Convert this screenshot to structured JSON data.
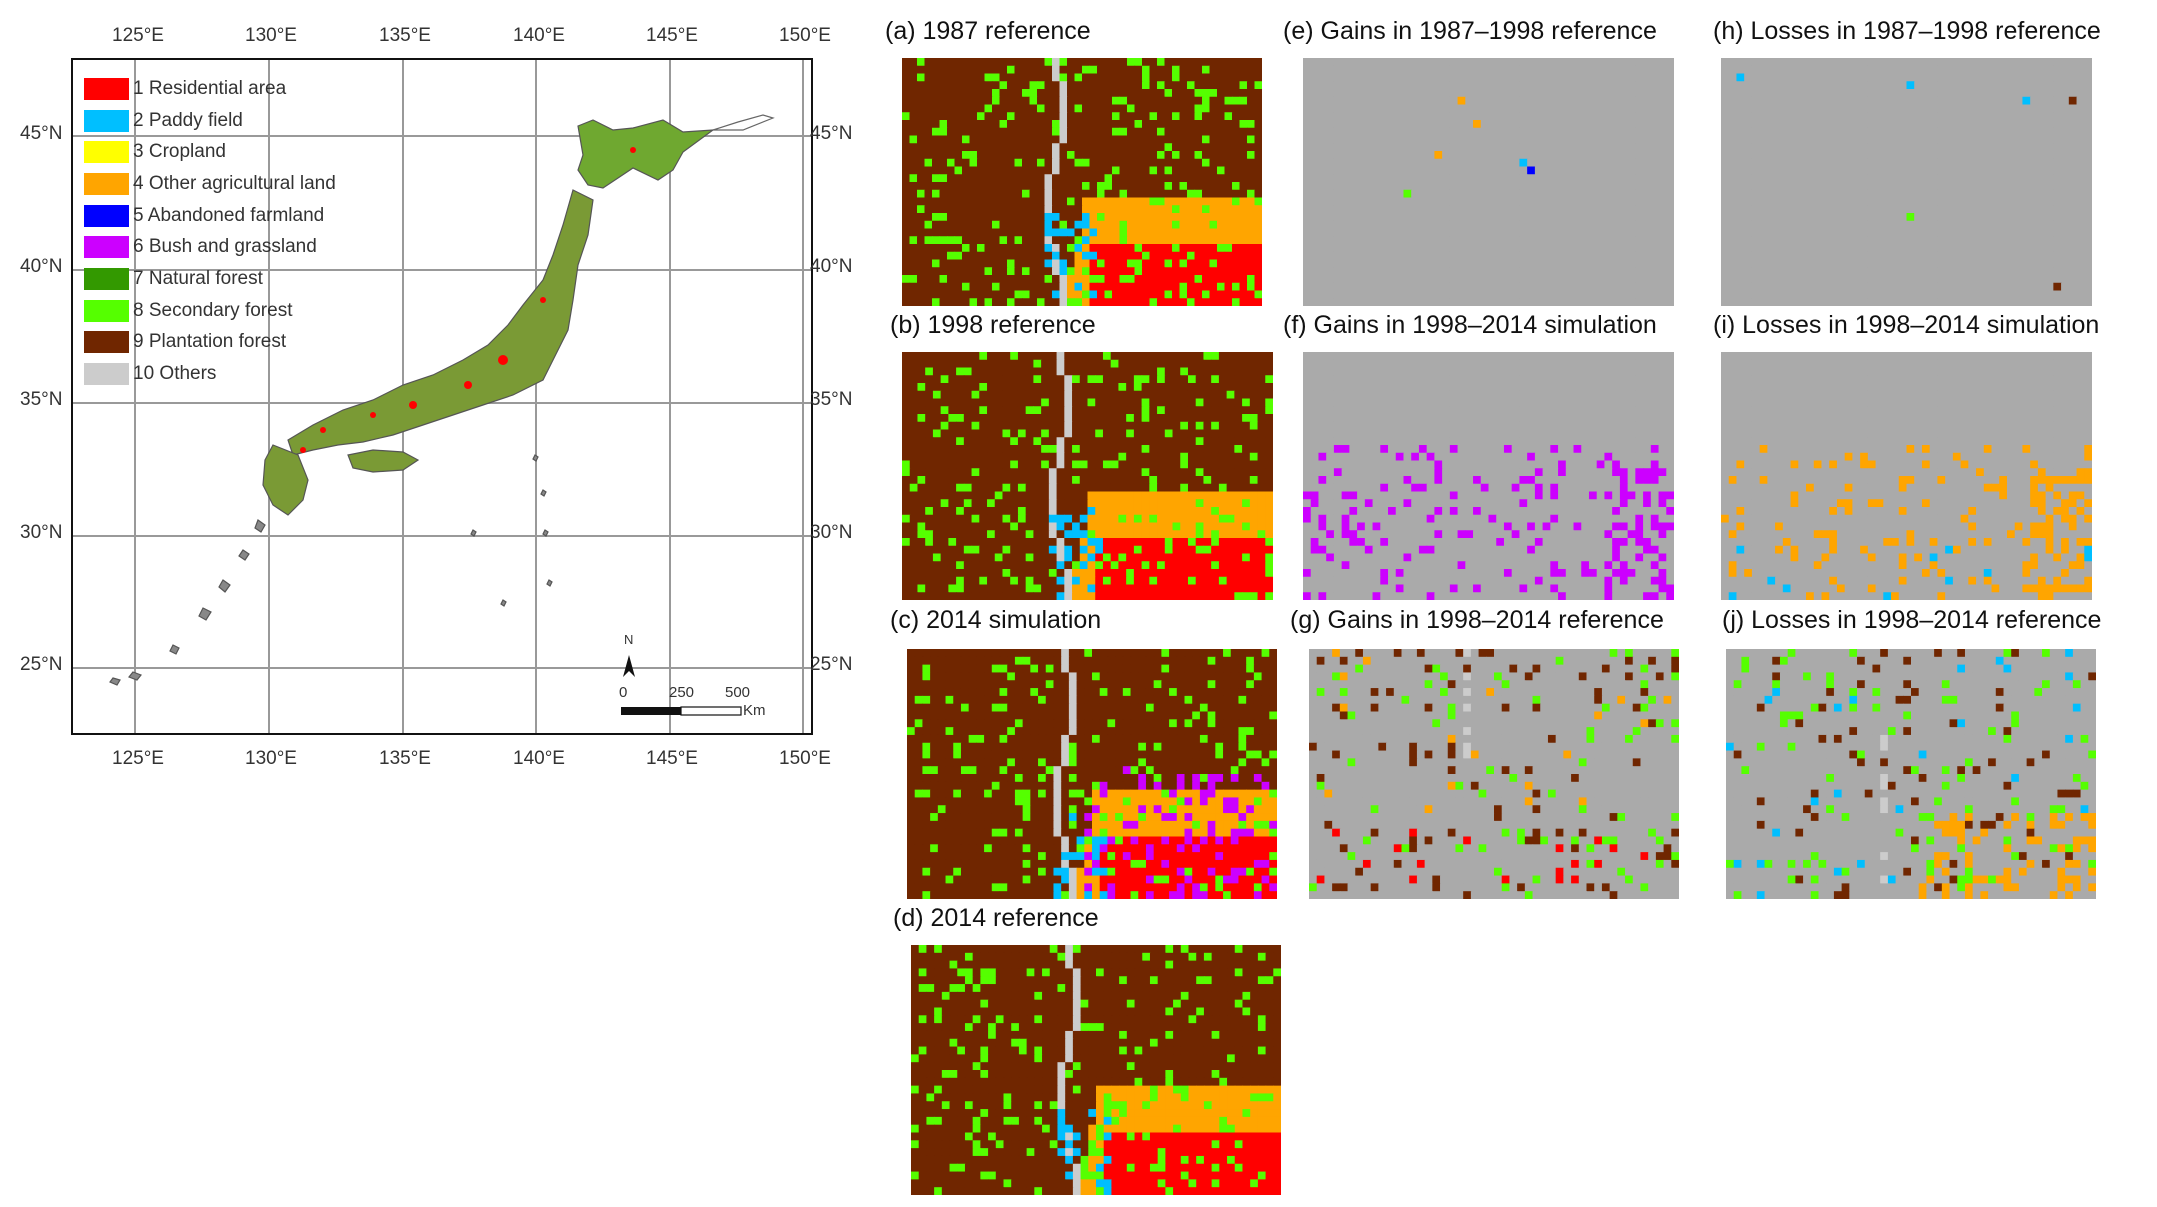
{
  "map": {
    "top_lon_labels": [
      "125°E",
      "130°E",
      "135°E",
      "140°E",
      "145°E",
      "150°E"
    ],
    "bottom_lon_labels": [
      "125°E",
      "130°E",
      "135°E",
      "140°E",
      "145°E",
      "150°E"
    ],
    "left_lat_labels": [
      "45°N",
      "40°N",
      "35°N",
      "30°N",
      "25°N"
    ],
    "right_lat_labels": [
      "45°N",
      "40°N",
      "35°N",
      "30°N",
      "25°N"
    ],
    "north_arrow": "N",
    "scale_labels": [
      "0",
      "250",
      "500"
    ],
    "scale_unit": "Km"
  },
  "legend": [
    {
      "label": "1 Residential area",
      "color": "#ff0000"
    },
    {
      "label": "2 Paddy field",
      "color": "#00bfff"
    },
    {
      "label": "3 Cropland",
      "color": "#ffff00"
    },
    {
      "label": "4 Other agricultural land",
      "color": "#ffa500"
    },
    {
      "label": "5 Abandoned farmland",
      "color": "#0000ff"
    },
    {
      "label": "6 Bush and grassland",
      "color": "#cc00ff"
    },
    {
      "label": "7 Natural forest",
      "color": "#339900"
    },
    {
      "label": "8 Secondary forest",
      "color": "#55ff00"
    },
    {
      "label": "9 Plantation forest",
      "color": "#702600"
    },
    {
      "label": "10 Others",
      "color": "#cccccc"
    }
  ],
  "panels": [
    {
      "id": "a",
      "title": "(a) 1987 reference",
      "kind": "full",
      "seed": 11
    },
    {
      "id": "b",
      "title": "(b) 1998 reference",
      "kind": "full",
      "seed": 23
    },
    {
      "id": "c",
      "title": "(c) 2014 simulation",
      "kind": "full",
      "seed": 37
    },
    {
      "id": "d",
      "title": "(d) 2014 reference",
      "kind": "full",
      "seed": 51
    },
    {
      "id": "e",
      "title": "(e) Gains in 1987–1998 reference",
      "kind": "few",
      "seed": 5
    },
    {
      "id": "f",
      "title": "(f) Gains in 1998–2014 simulation",
      "kind": "magenta",
      "seed": 7
    },
    {
      "id": "g",
      "title": "(g) Gains in 1998–2014 reference",
      "kind": "mixed",
      "seed": 13
    },
    {
      "id": "h",
      "title": "(h) Losses in 1987–1998 reference",
      "kind": "few",
      "seed": 17
    },
    {
      "id": "i",
      "title": "(i) Losses in 1998–2014 simulation",
      "kind": "orange",
      "seed": 19
    },
    {
      "id": "j",
      "title": "(j) Losses in 1998–2014 reference",
      "kind": "mixed2",
      "seed": 29
    }
  ]
}
